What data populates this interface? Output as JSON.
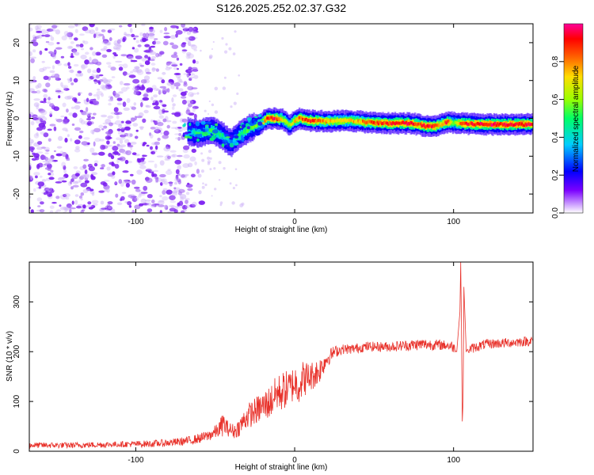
{
  "title": "S126.2025.252.02.37.G32",
  "chart_data": [
    {
      "type": "heatmap",
      "name": "spectrogram",
      "xlabel": "Height of straight line (km)",
      "ylabel": "Frequency (Hz)",
      "xlim": [
        -167,
        150
      ],
      "ylim": [
        -25,
        25
      ],
      "xticks": [
        -100,
        0,
        100
      ],
      "yticks": [
        -20,
        -10,
        0,
        10,
        20
      ],
      "xtick_labels": [
        "-100",
        "0",
        "100"
      ],
      "ytick_labels": [
        "-20",
        "-10",
        "0",
        "10",
        "20"
      ],
      "noise_region_x": [
        -167,
        -62
      ],
      "ridge": {
        "x": [
          -67,
          -60,
          -52,
          -46,
          -40,
          -35,
          -28,
          -22,
          -17,
          -13,
          -8,
          -3,
          0,
          3,
          10,
          20,
          35,
          50,
          60,
          72,
          78,
          82,
          88,
          92,
          96,
          100,
          106,
          120,
          135,
          150
        ],
        "y": [
          -3.5,
          -4,
          -3,
          -4.5,
          -6.5,
          -4.5,
          -2.5,
          -1.5,
          0,
          0,
          -0.2,
          -1.8,
          -0.6,
          0,
          -0.6,
          -0.8,
          -0.6,
          -1.2,
          -1.3,
          -1.3,
          -1.6,
          -2.1,
          -2.1,
          -1.6,
          -1.0,
          -1.2,
          -1.4,
          -1.6,
          -1.6,
          -1.6
        ],
        "amp": [
          0.35,
          0.45,
          0.5,
          0.45,
          0.3,
          0.45,
          0.5,
          0.55,
          0.9,
          0.95,
          0.7,
          0.6,
          0.7,
          0.85,
          0.9,
          0.75,
          0.7,
          0.85,
          0.9,
          0.95,
          0.85,
          0.95,
          0.9,
          0.7,
          0.95,
          0.55,
          0.9,
          0.95,
          0.95,
          0.95
        ]
      }
    },
    {
      "type": "colorbar",
      "name": "amplitude-colorbar",
      "label": "Normalized spectral amplitude",
      "range": [
        0,
        1
      ],
      "ticks": [
        0.0,
        0.2,
        0.4,
        0.6,
        0.8
      ],
      "tick_labels": [
        "0.0",
        "0.2",
        "0.4",
        "0.6",
        "0.8"
      ],
      "colormap": [
        "#ffffff",
        "#6600ff",
        "#0000ff",
        "#00ccff",
        "#00ff66",
        "#99ff00",
        "#ffdd00",
        "#ff6600",
        "#ff0000",
        "#ff0099"
      ]
    },
    {
      "type": "line",
      "name": "snr",
      "xlabel": "Height of straight line (km)",
      "ylabel": "SNR (10 * v/v)",
      "xlim": [
        -167,
        150
      ],
      "ylim": [
        0,
        380
      ],
      "xticks": [
        -100,
        0,
        100
      ],
      "yticks": [
        0,
        100,
        200,
        300
      ],
      "xtick_labels": [
        "-100",
        "0",
        "100"
      ],
      "ytick_labels": [
        "0",
        "100",
        "200",
        "300"
      ],
      "color": "#e8312a",
      "series": [
        {
          "name": "SNR",
          "x": [
            -167,
            -140,
            -110,
            -90,
            -75,
            -65,
            -55,
            -48,
            -45,
            -42,
            -38,
            -35,
            -30,
            -25,
            -20,
            -15,
            -12,
            -8,
            -5,
            -2,
            0,
            2,
            5,
            10,
            15,
            18,
            20,
            25,
            30,
            35,
            45,
            60,
            80,
            95,
            100,
            102,
            104,
            104.5,
            105,
            105.5,
            106,
            106.5,
            108,
            110,
            120,
            135,
            150
          ],
          "y": [
            12,
            12,
            14,
            15,
            18,
            22,
            30,
            42,
            55,
            45,
            40,
            48,
            70,
            80,
            90,
            100,
            115,
            120,
            125,
            130,
            140,
            130,
            145,
            150,
            160,
            175,
            185,
            200,
            205,
            205,
            210,
            210,
            215,
            213,
            210,
            200,
            280,
            380,
            240,
            60,
            100,
            330,
            200,
            205,
            215,
            218,
            222
          ],
          "noise_amp": [
            6,
            6,
            6,
            7,
            8,
            9,
            11,
            15,
            25,
            15,
            15,
            18,
            25,
            28,
            30,
            35,
            35,
            40,
            38,
            35,
            40,
            35,
            38,
            30,
            28,
            22,
            18,
            12,
            10,
            10,
            10,
            10,
            12,
            10,
            12,
            0,
            0,
            0,
            0,
            0,
            0,
            0,
            0,
            10,
            10,
            10,
            10
          ]
        }
      ]
    }
  ]
}
